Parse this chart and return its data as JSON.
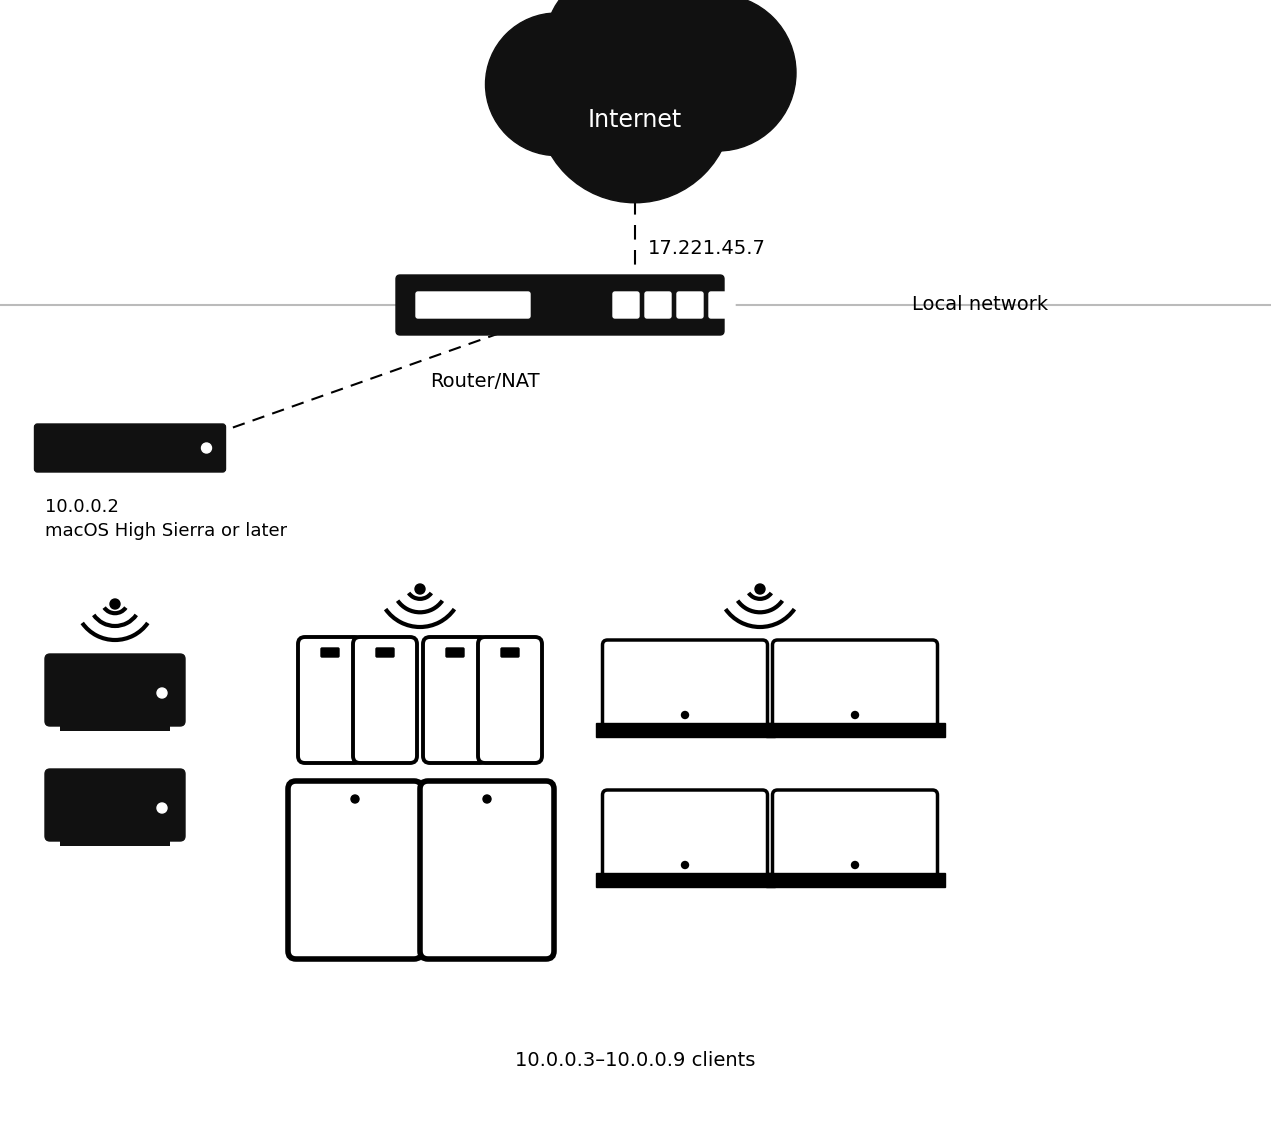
{
  "bg_color": "#ffffff",
  "cloud_label": "Internet",
  "cloud_label_color": "#ffffff",
  "internet_ip": "17.221.45.7",
  "local_network_label": "Local network",
  "router_label": "Router/NAT",
  "cache_mac_label1": "10.0.0.2",
  "cache_mac_label2": "macOS High Sierra or later",
  "clients_label": "10.0.0.3–10.0.0.9 clients",
  "device_color": "#111111",
  "line_color": "#aaaaaa",
  "font_size_cloud": 17,
  "font_size_label": 14,
  "font_size_small": 13
}
